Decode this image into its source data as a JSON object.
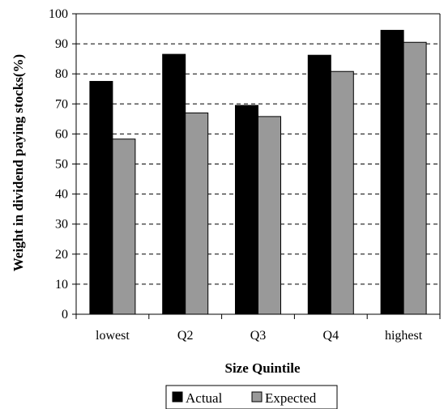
{
  "chart_data": {
    "type": "bar",
    "categories": [
      "lowest",
      "Q2",
      "Q3",
      "Q4",
      "highest"
    ],
    "series": [
      {
        "name": "Actual",
        "values": [
          77.5,
          86.5,
          69.5,
          86.2,
          94.5
        ],
        "color": "#000000"
      },
      {
        "name": "Expected",
        "values": [
          58.3,
          67.0,
          65.8,
          80.8,
          90.5
        ],
        "color": "#999999"
      }
    ],
    "title": "",
    "xlabel": "Size Quintile",
    "ylabel": "Weight in dividend paying stocks(%)",
    "ylim": [
      0,
      100
    ],
    "yticks": [
      0,
      10,
      20,
      30,
      40,
      50,
      60,
      70,
      80,
      90,
      100
    ],
    "grid": "horizontal dashed",
    "legend": "bottom-center"
  }
}
